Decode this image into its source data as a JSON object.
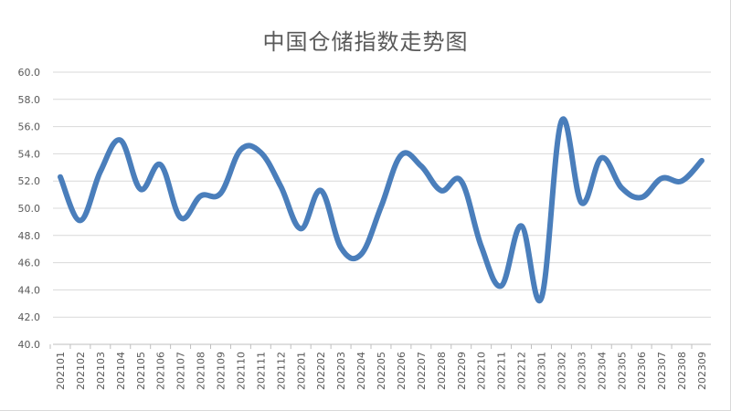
{
  "chart_data": {
    "type": "line",
    "title": "中国仓储指数走势图",
    "xlabel": "",
    "ylabel": "",
    "ylim": [
      40.0,
      60.0
    ],
    "yticks": [
      "40.0",
      "42.0",
      "44.0",
      "46.0",
      "48.0",
      "50.0",
      "52.0",
      "54.0",
      "56.0",
      "58.0",
      "60.0"
    ],
    "grid": true,
    "legend": null,
    "line_color": "#4a7ebb",
    "categories": [
      "202101",
      "202102",
      "202103",
      "202104",
      "202105",
      "202106",
      "202107",
      "202108",
      "202109",
      "202110",
      "202111",
      "202112",
      "202201",
      "202202",
      "202203",
      "202204",
      "202205",
      "202206",
      "202207",
      "202208",
      "202209",
      "202210",
      "202211",
      "202212",
      "202301",
      "202302",
      "202303",
      "202304",
      "202305",
      "202306",
      "202307",
      "202308",
      "202309"
    ],
    "series": [
      {
        "name": "中国仓储指数",
        "values": [
          52.3,
          49.1,
          52.7,
          55.0,
          51.4,
          53.2,
          49.3,
          50.9,
          51.1,
          54.3,
          54.1,
          51.6,
          48.5,
          51.3,
          47.1,
          46.6,
          50.1,
          53.9,
          53.1,
          51.3,
          52.0,
          47.2,
          44.3,
          48.7,
          43.4,
          56.4,
          50.4,
          53.7,
          51.5,
          50.8,
          52.2,
          52.0,
          53.5
        ]
      }
    ]
  }
}
